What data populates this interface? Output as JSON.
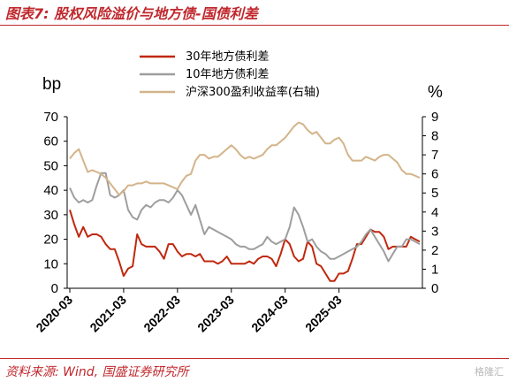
{
  "header": {
    "title": "图表7:  股权风险溢价与地方债-国债利差"
  },
  "footer": {
    "source": "资料来源:  Wind,  国盛证券研究所",
    "watermark": "格隆汇"
  },
  "chart_data": {
    "type": "line",
    "y_left": {
      "label": "bp",
      "range": [
        0,
        70
      ],
      "ticks": [
        "0",
        "10",
        "20",
        "30",
        "40",
        "50",
        "60",
        "70"
      ]
    },
    "y_right": {
      "label": "%",
      "range": [
        0,
        9
      ],
      "ticks": [
        "0",
        "1",
        "2",
        "3",
        "4",
        "5",
        "6",
        "7",
        "8",
        "9"
      ]
    },
    "x_ticks": [
      "2020-03",
      "2021-03",
      "2022-03",
      "2023-03",
      "2024-03",
      "2025-03"
    ],
    "grid": false,
    "legend_position": "top",
    "series": [
      {
        "name": "30年地方债利差",
        "axis": "left",
        "color": "#c0280f",
        "values": [
          32,
          26,
          21,
          25,
          21,
          22,
          22,
          21,
          18,
          16,
          16,
          11,
          5,
          8,
          9,
          22,
          18,
          17,
          17,
          17,
          15,
          12,
          18,
          18,
          15,
          13,
          14,
          14,
          13,
          14,
          11,
          11,
          11,
          10,
          11,
          13,
          10,
          10,
          10,
          10,
          11,
          10,
          12,
          13,
          13,
          12,
          9,
          14,
          20,
          18,
          13,
          11,
          12,
          19,
          17,
          10,
          9,
          6,
          3,
          3,
          6,
          6,
          7,
          12,
          18,
          18,
          21,
          24,
          23,
          23,
          21,
          16,
          17,
          17,
          17,
          17,
          21,
          20,
          19
        ],
        "start": "2020-03",
        "frequency": "monthly"
      },
      {
        "name": "10年地方债利差",
        "axis": "left",
        "color": "#9e9e9e",
        "values": [
          41,
          37,
          35,
          36,
          35,
          36,
          42,
          47,
          47,
          38,
          37,
          38,
          40,
          32,
          29,
          28,
          32,
          34,
          33,
          35,
          36,
          36,
          35,
          37,
          40,
          38,
          34,
          30,
          34,
          28,
          22,
          25,
          24,
          23,
          22,
          21,
          20,
          18,
          17,
          17,
          16,
          16,
          17,
          18,
          21,
          19,
          18,
          19,
          20,
          25,
          33,
          30,
          25,
          19,
          20,
          17,
          15,
          14,
          12,
          12,
          13,
          14,
          15,
          16,
          17,
          19,
          22,
          24,
          21,
          18,
          15,
          11,
          14,
          17,
          17,
          20,
          20,
          19,
          18
        ],
        "start": "2020-03",
        "frequency": "monthly"
      },
      {
        "name": "沪深300盈利收益率(右轴)",
        "axis": "right",
        "color": "#d4b48a",
        "values": [
          6.8,
          7.1,
          7.3,
          6.7,
          6.1,
          6.2,
          6.1,
          6.0,
          5.8,
          5.5,
          5.2,
          4.9,
          5.1,
          5.4,
          5.4,
          5.5,
          5.5,
          5.6,
          5.5,
          5.5,
          5.5,
          5.5,
          5.4,
          5.3,
          5.2,
          5.6,
          5.9,
          6.0,
          6.7,
          7.0,
          7.0,
          6.8,
          6.9,
          6.9,
          7.1,
          7.3,
          7.5,
          7.3,
          7.0,
          6.8,
          6.9,
          6.8,
          6.9,
          7.0,
          7.3,
          7.5,
          7.5,
          7.7,
          7.9,
          8.2,
          8.5,
          8.7,
          8.6,
          8.3,
          8.1,
          8.2,
          7.9,
          7.6,
          7.6,
          7.8,
          7.9,
          7.6,
          7.0,
          6.7,
          6.7,
          6.7,
          6.9,
          6.8,
          6.7,
          6.9,
          7.0,
          7.0,
          6.8,
          6.6,
          6.2,
          6.0,
          6.0,
          5.9,
          5.8
        ],
        "start": "2020-03",
        "frequency": "monthly"
      }
    ]
  }
}
